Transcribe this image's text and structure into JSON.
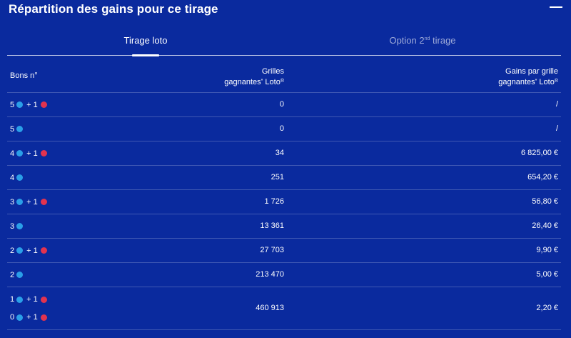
{
  "header": {
    "title": "Répartition des gains pour ce tirage"
  },
  "tabs": [
    {
      "label": "Tirage loto"
    },
    {
      "label_prefix": "Option 2",
      "label_sup": "nd",
      "label_suffix": " tirage"
    }
  ],
  "table": {
    "col1": "Bons n°",
    "col2_line1": "Grilles",
    "col2_line2": "gagnantes",
    "col2_sup": "*",
    "col2_suffix": " Loto",
    "col2_reg": "®",
    "col3_line1": "Gains par grille",
    "col3_line2": "gagnantes",
    "col3_sup": "*",
    "col3_suffix": " Loto",
    "col3_reg": "®",
    "plus_text": "+ 1",
    "rows": [
      {
        "combos": [
          {
            "n": "5",
            "bonus": true
          }
        ],
        "grilles": "0",
        "gains": "/"
      },
      {
        "combos": [
          {
            "n": "5",
            "bonus": false
          }
        ],
        "grilles": "0",
        "gains": "/"
      },
      {
        "combos": [
          {
            "n": "4",
            "bonus": true
          }
        ],
        "grilles": "34",
        "gains": "6 825,00 €"
      },
      {
        "combos": [
          {
            "n": "4",
            "bonus": false
          }
        ],
        "grilles": "251",
        "gains": "654,20 €"
      },
      {
        "combos": [
          {
            "n": "3",
            "bonus": true
          }
        ],
        "grilles": "1 726",
        "gains": "56,80 €"
      },
      {
        "combos": [
          {
            "n": "3",
            "bonus": false
          }
        ],
        "grilles": "13 361",
        "gains": "26,40 €"
      },
      {
        "combos": [
          {
            "n": "2",
            "bonus": true
          }
        ],
        "grilles": "27 703",
        "gains": "9,90 €"
      },
      {
        "combos": [
          {
            "n": "2",
            "bonus": false
          }
        ],
        "grilles": "213 470",
        "gains": "5,00 €"
      },
      {
        "combos": [
          {
            "n": "1",
            "bonus": true
          },
          {
            "n": "0",
            "bonus": true
          }
        ],
        "grilles": "460 913",
        "gains": "2,20 €"
      }
    ]
  },
  "colors": {
    "background": "#0a2a9e",
    "ball_blue": "#2a9fe8",
    "ball_red": "#e2334f"
  }
}
